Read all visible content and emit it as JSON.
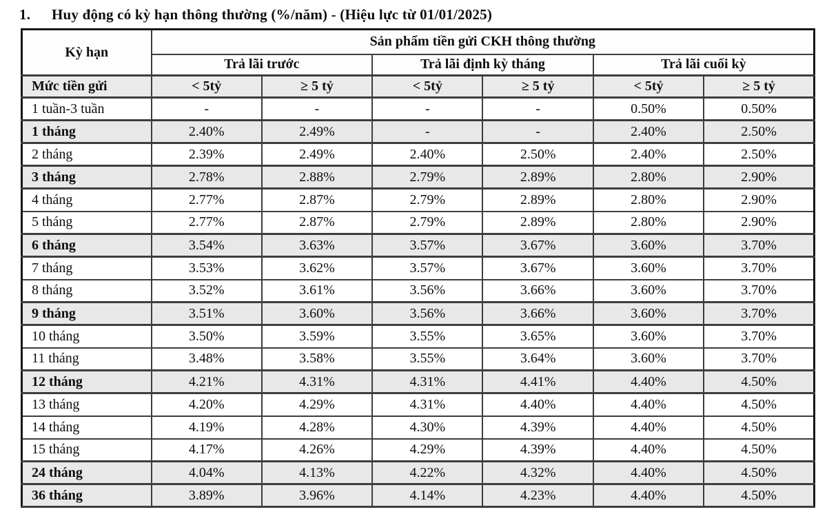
{
  "title": {
    "number": "1.",
    "text": "Huy động có kỳ hạn thông thường (%/năm) - (Hiệu lực từ 01/01/2025)"
  },
  "table": {
    "corner_header": "Kỳ hạn",
    "group_header": "Sản phẩm tiền gửi CKH thông thường",
    "payment_groups": [
      "Trả lãi trước",
      "Trả lãi định kỳ tháng",
      "Trả lãi cuối kỳ"
    ],
    "amount_row_label": "Mức tiền gửi",
    "amount_headers": [
      "< 5tỷ",
      "≥ 5 tỷ",
      "< 5tỷ",
      "≥ 5 tỷ",
      "< 5tỷ",
      "≥ 5 tỷ"
    ],
    "rows": [
      {
        "term": "1 tuần-3 tuần",
        "bold": false,
        "values": [
          "-",
          "-",
          "-",
          "-",
          "0.50%",
          "0.50%"
        ]
      },
      {
        "term": "1 tháng",
        "bold": true,
        "values": [
          "2.40%",
          "2.49%",
          "-",
          "-",
          "2.40%",
          "2.50%"
        ]
      },
      {
        "term": "2 tháng",
        "bold": false,
        "values": [
          "2.39%",
          "2.49%",
          "2.40%",
          "2.50%",
          "2.40%",
          "2.50%"
        ]
      },
      {
        "term": "3 tháng",
        "bold": true,
        "values": [
          "2.78%",
          "2.88%",
          "2.79%",
          "2.89%",
          "2.80%",
          "2.90%"
        ]
      },
      {
        "term": "4 tháng",
        "bold": false,
        "values": [
          "2.77%",
          "2.87%",
          "2.79%",
          "2.89%",
          "2.80%",
          "2.90%"
        ]
      },
      {
        "term": "5 tháng",
        "bold": false,
        "values": [
          "2.77%",
          "2.87%",
          "2.79%",
          "2.89%",
          "2.80%",
          "2.90%"
        ]
      },
      {
        "term": "6 tháng",
        "bold": true,
        "values": [
          "3.54%",
          "3.63%",
          "3.57%",
          "3.67%",
          "3.60%",
          "3.70%"
        ]
      },
      {
        "term": "7 tháng",
        "bold": false,
        "values": [
          "3.53%",
          "3.62%",
          "3.57%",
          "3.67%",
          "3.60%",
          "3.70%"
        ]
      },
      {
        "term": "8 tháng",
        "bold": false,
        "values": [
          "3.52%",
          "3.61%",
          "3.56%",
          "3.66%",
          "3.60%",
          "3.70%"
        ]
      },
      {
        "term": "9 tháng",
        "bold": true,
        "values": [
          "3.51%",
          "3.60%",
          "3.56%",
          "3.66%",
          "3.60%",
          "3.70%"
        ]
      },
      {
        "term": "10 tháng",
        "bold": false,
        "values": [
          "3.50%",
          "3.59%",
          "3.55%",
          "3.65%",
          "3.60%",
          "3.70%"
        ]
      },
      {
        "term": "11 tháng",
        "bold": false,
        "values": [
          "3.48%",
          "3.58%",
          "3.55%",
          "3.64%",
          "3.60%",
          "3.70%"
        ]
      },
      {
        "term": "12 tháng",
        "bold": true,
        "values": [
          "4.21%",
          "4.31%",
          "4.31%",
          "4.41%",
          "4.40%",
          "4.50%"
        ]
      },
      {
        "term": "13 tháng",
        "bold": false,
        "values": [
          "4.20%",
          "4.29%",
          "4.31%",
          "4.40%",
          "4.40%",
          "4.50%"
        ]
      },
      {
        "term": "14 tháng",
        "bold": false,
        "values": [
          "4.19%",
          "4.28%",
          "4.30%",
          "4.39%",
          "4.40%",
          "4.50%"
        ]
      },
      {
        "term": "15 tháng",
        "bold": false,
        "values": [
          "4.17%",
          "4.26%",
          "4.29%",
          "4.39%",
          "4.40%",
          "4.50%"
        ]
      },
      {
        "term": "24 tháng",
        "bold": true,
        "values": [
          "4.04%",
          "4.13%",
          "4.22%",
          "4.32%",
          "4.40%",
          "4.50%"
        ]
      },
      {
        "term": "36 tháng",
        "bold": true,
        "values": [
          "3.89%",
          "3.96%",
          "4.14%",
          "4.23%",
          "4.40%",
          "4.50%"
        ]
      }
    ]
  },
  "colors": {
    "shaded_row_bg": "#e8e8e8",
    "amount_header_bg": "#eaeaea",
    "border": "#3d3d3d",
    "outer_border": "#161616",
    "text": "#0e0e0e",
    "page_bg": "#ffffff"
  }
}
